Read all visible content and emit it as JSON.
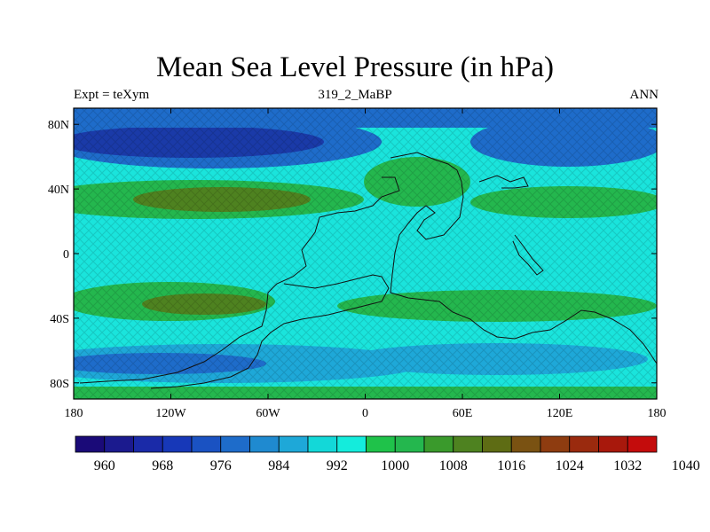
{
  "title": "Mean Sea Level Pressure (in hPa)",
  "left_label": "Expt = teXym",
  "center_label": "319_2_MaBP",
  "right_label": "ANN",
  "map": {
    "projection": "cylindrical-equidistant",
    "lon_range": [
      -180,
      180
    ],
    "lat_range": [
      -90,
      90
    ],
    "lat_ticks": [
      {
        "value": 80,
        "label": "80N"
      },
      {
        "value": 40,
        "label": "40N"
      },
      {
        "value": 0,
        "label": "0"
      },
      {
        "value": -40,
        "label": "40S"
      },
      {
        "value": -80,
        "label": "80S"
      }
    ],
    "lon_ticks": [
      {
        "value": -180,
        "label": "180"
      },
      {
        "value": -120,
        "label": "120W"
      },
      {
        "value": -60,
        "label": "60W"
      },
      {
        "value": 0,
        "label": "0"
      },
      {
        "value": 60,
        "label": "60E"
      },
      {
        "value": 120,
        "label": "120E"
      },
      {
        "value": 180,
        "label": "180"
      }
    ]
  },
  "colorbar": {
    "colors": [
      "#1a0a78",
      "#1b1a8e",
      "#1a2aa8",
      "#1738b8",
      "#1a52c2",
      "#1e6cca",
      "#1f8ad0",
      "#1ea8d8",
      "#13d8d8",
      "#14ecdc",
      "#1fc24a",
      "#24b74e",
      "#3a9a2c",
      "#4e8220",
      "#5e6c14",
      "#7a5212",
      "#8e3c10",
      "#9a2a0e",
      "#a8180c",
      "#c40c0c"
    ],
    "labels": [
      "960",
      "968",
      "976",
      "984",
      "992",
      "1000",
      "1008",
      "1016",
      "1024",
      "1032",
      "1040"
    ]
  },
  "palette": {
    "deep_low": "#1a3aa8",
    "low": "#1e6cca",
    "mid_low": "#1ea8d8",
    "neutral": "#1ae4dc",
    "high": "#24b74e",
    "higher": "#4e8220",
    "highest": "#7a4a14"
  }
}
